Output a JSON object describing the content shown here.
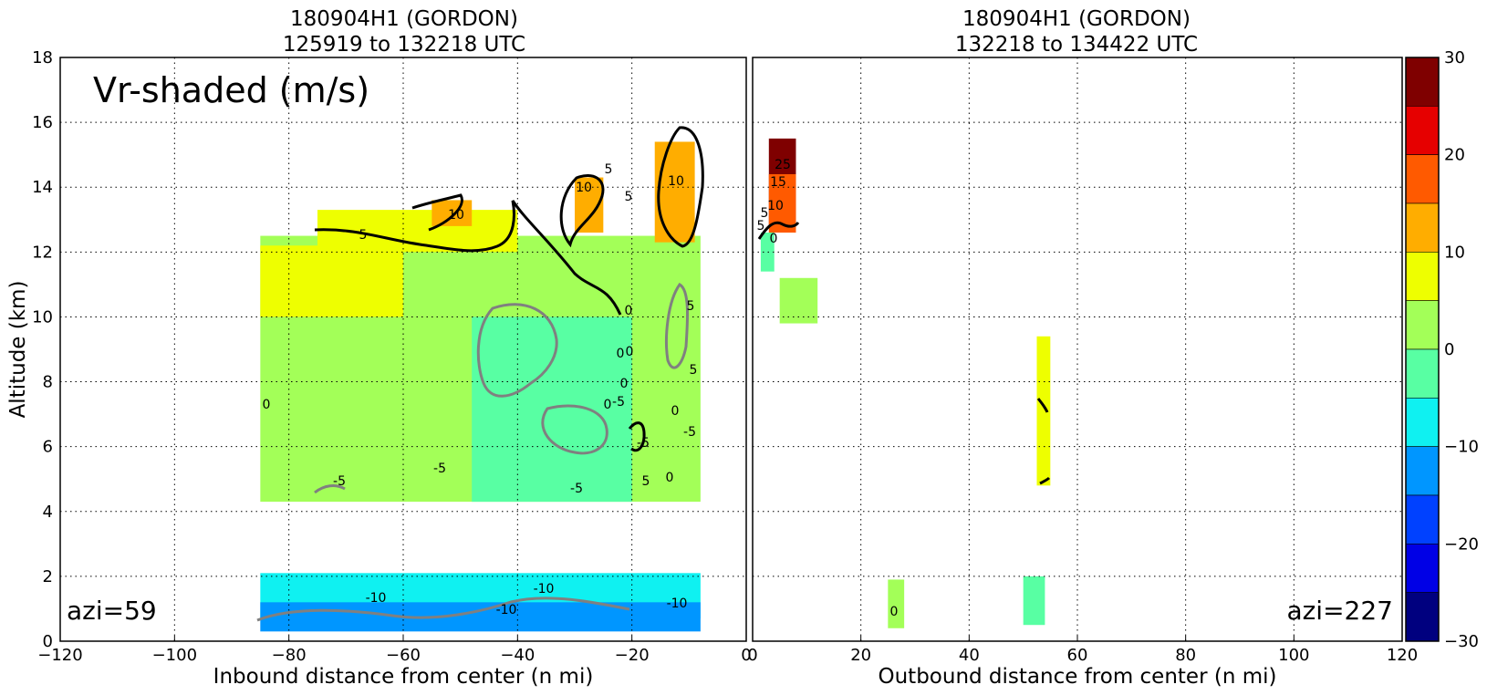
{
  "chart_data": [
    {
      "type": "heatmap",
      "title": [
        "180904H1 (GORDON)",
        "125919 to 132218 UTC"
      ],
      "xlabel": "Inbound distance from center (n mi)",
      "ylabel": "Altitude (km)",
      "xlim": [
        -120,
        0
      ],
      "ylim": [
        0,
        18
      ],
      "xticks": [
        "−120",
        "−100",
        "−80",
        "−60",
        "−40",
        "−20",
        "0"
      ],
      "yticks": [
        "0",
        "2",
        "4",
        "6",
        "8",
        "10",
        "12",
        "14",
        "16",
        "18"
      ],
      "grid": true,
      "panel_label": "Vr-shaded (m/s)",
      "azimuth_label": "azi=59",
      "contour_labels": [
        "5",
        "10",
        "10",
        "5",
        "10",
        "5",
        "0",
        "0",
        "5",
        "0",
        "0",
        "5",
        "0",
        "-5",
        "0",
        "-5",
        "5",
        "0",
        "-5",
        "0",
        "-5",
        "-5",
        "-5",
        "-10",
        "-10",
        "-10",
        "-10"
      ],
      "regions": [
        {
          "vr": 0,
          "x": [
            -85,
            -8
          ],
          "y": [
            4.3,
            12.5
          ]
        },
        {
          "vr": 5,
          "x": [
            -85,
            -60
          ],
          "y": [
            10,
            12.2
          ]
        },
        {
          "vr": 5,
          "x": [
            -75,
            -40
          ],
          "y": [
            12,
            13.3
          ]
        },
        {
          "vr": 10,
          "x": [
            -55,
            -48
          ],
          "y": [
            12.8,
            13.6
          ]
        },
        {
          "vr": 10,
          "x": [
            -30,
            -25
          ],
          "y": [
            12.6,
            14.3
          ]
        },
        {
          "vr": 10,
          "x": [
            -16,
            -9
          ],
          "y": [
            12.3,
            15.4
          ]
        },
        {
          "vr": -5,
          "x": [
            -48,
            -20
          ],
          "y": [
            4.3,
            10
          ]
        },
        {
          "vr": -10,
          "x": [
            -85,
            -8
          ],
          "y": [
            0.7,
            2.1
          ]
        },
        {
          "vr": -15,
          "x": [
            -85,
            -8
          ],
          "y": [
            0.3,
            1.2
          ]
        }
      ]
    },
    {
      "type": "heatmap",
      "title": [
        "180904H1 (GORDON)",
        "132218 to 134422 UTC"
      ],
      "xlabel": "Outbound distance from center (n mi)",
      "xlim": [
        0,
        120
      ],
      "ylim": [
        0,
        18
      ],
      "xticks": [
        "0",
        "20",
        "40",
        "60",
        "80",
        "100",
        "120"
      ],
      "grid": true,
      "azimuth_label": "azi=227",
      "contour_labels": [
        "5",
        "10",
        "15",
        "25",
        "0",
        "5",
        "0"
      ],
      "regions": [
        {
          "vr": 25,
          "x": [
            3,
            8
          ],
          "y": [
            12.8,
            15.5
          ]
        },
        {
          "vr": 15,
          "x": [
            3,
            8
          ],
          "y": [
            12.6,
            14.4
          ]
        },
        {
          "vr": -5,
          "x": [
            1.5,
            4
          ],
          "y": [
            11.4,
            12.6
          ]
        },
        {
          "vr": 0,
          "x": [
            5,
            12
          ],
          "y": [
            9.8,
            11.2
          ]
        },
        {
          "vr": 5,
          "x": [
            52.5,
            55
          ],
          "y": [
            4.8,
            9.4
          ]
        },
        {
          "vr": -5,
          "x": [
            50,
            54
          ],
          "y": [
            0.5,
            2
          ]
        },
        {
          "vr": 0,
          "x": [
            25,
            28
          ],
          "y": [
            0.4,
            1.9
          ]
        }
      ]
    }
  ],
  "colorbar": {
    "ticks": [
      "30",
      "20",
      "10",
      "0",
      "−10",
      "−20",
      "−30"
    ],
    "range": [
      -30,
      30
    ],
    "step": 5,
    "colors": [
      "#7f0000",
      "#e60000",
      "#ff5a00",
      "#ffad00",
      "#eeff00",
      "#a3ff58",
      "#58ffa3",
      "#0ff1f1",
      "#0096ff",
      "#0041ff",
      "#0000e6",
      "#00007f"
    ]
  }
}
